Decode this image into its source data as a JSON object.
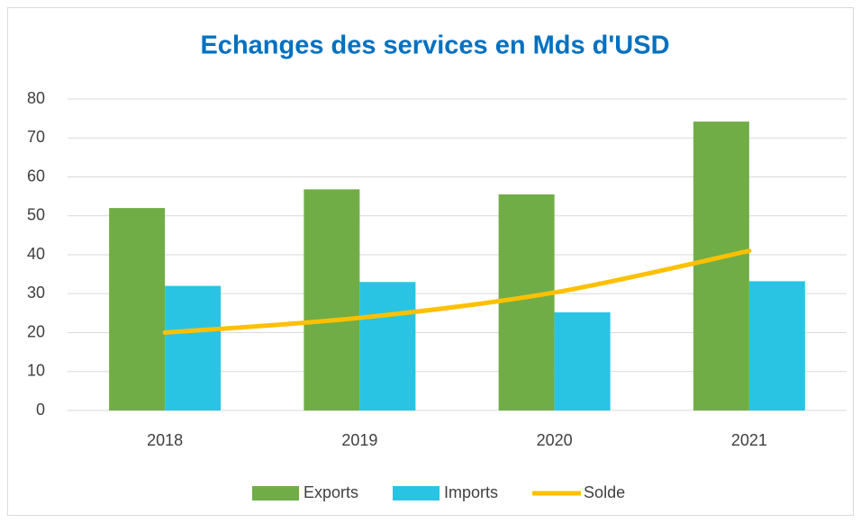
{
  "chart_data": {
    "type": "bar",
    "title": "Echanges des services en Mds d'USD",
    "categories": [
      "2018",
      "2019",
      "2020",
      "2021"
    ],
    "series": [
      {
        "name": "Exports",
        "color": "#70ad47",
        "values": [
          52,
          56.8,
          55.5,
          74.2
        ]
      },
      {
        "name": "Imports",
        "color": "#29c4e3",
        "values": [
          32,
          33,
          25.2,
          33.2
        ]
      },
      {
        "name": "Solde",
        "type": "line",
        "color": "#ffc000",
        "values": [
          20,
          23.8,
          30.3,
          41
        ]
      }
    ],
    "ylim": [
      0,
      80
    ],
    "yticks": [
      0,
      10,
      20,
      30,
      40,
      50,
      60,
      70,
      80
    ],
    "grid": true,
    "legend": "bottom"
  }
}
